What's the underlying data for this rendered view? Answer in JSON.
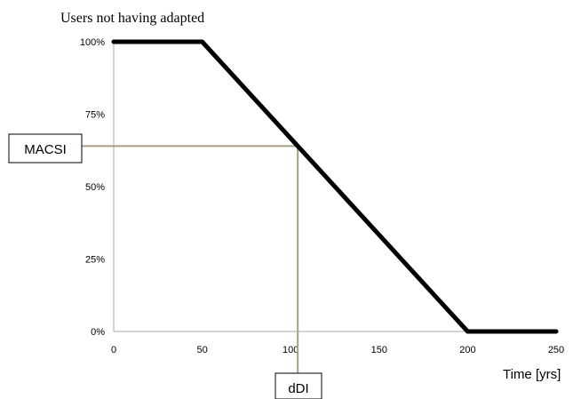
{
  "chart_data": {
    "type": "line",
    "title": "Users not having adapted",
    "xlabel": "Time [yrs]",
    "ylabel": "",
    "xlim": [
      0,
      250
    ],
    "ylim": [
      0,
      100
    ],
    "xticks": [
      0,
      50,
      100,
      150,
      200,
      250
    ],
    "xtick_labels": [
      "0",
      "50",
      "100",
      "150",
      "200",
      "250"
    ],
    "yticks": [
      0,
      25,
      50,
      75,
      100
    ],
    "ytick_labels": [
      "0%",
      "25%",
      "50%",
      "75%",
      "100%"
    ],
    "grid": false,
    "series": [
      {
        "x": [
          0,
          50,
          200,
          250
        ],
        "y": [
          100,
          100,
          0,
          0
        ]
      }
    ],
    "annotations": [
      {
        "label": "MACSI",
        "x": 104,
        "y": 64,
        "points_to": "y-axis"
      },
      {
        "label": "dDI",
        "x": 104,
        "y": 64,
        "points_to": "x-axis"
      }
    ],
    "colors": {
      "series": "#000000",
      "annotation": "#a89f86",
      "axis": "#a9a9a9"
    }
  }
}
